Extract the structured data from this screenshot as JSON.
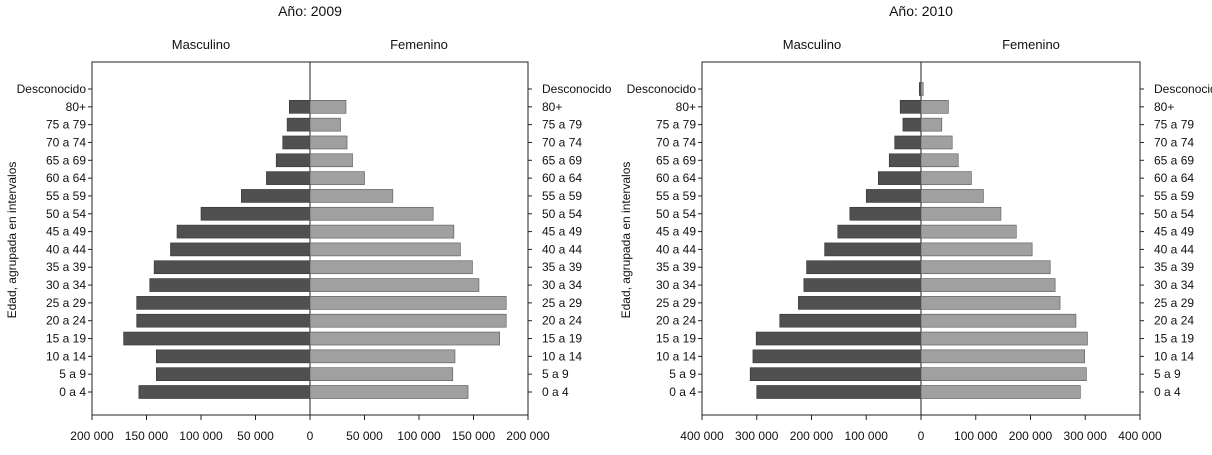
{
  "chart_data": [
    {
      "type": "bar",
      "subtype": "population-pyramid",
      "title": "Año: 2009",
      "ylabel": "Edad, agrupada en intervalos",
      "xlabel": "",
      "categories": [
        "0 a 4",
        "5 a 9",
        "10 a 14",
        "15 a 19",
        "20 a 24",
        "25 a 29",
        "30 a 34",
        "35 a 39",
        "40 a 44",
        "45 a 49",
        "50 a 54",
        "55 a 59",
        "60 a 64",
        "65 a 69",
        "70 a 74",
        "75 a 79",
        "80+",
        "Desconocido"
      ],
      "series": [
        {
          "name": "Masculino",
          "values": [
            157000,
            141000,
            141000,
            171000,
            159000,
            159000,
            147000,
            143000,
            128000,
            122000,
            100000,
            63000,
            40000,
            31000,
            25000,
            21000,
            19000,
            0
          ]
        },
        {
          "name": "Femenino",
          "values": [
            145000,
            131000,
            133000,
            174000,
            180000,
            180000,
            155000,
            149000,
            138000,
            132000,
            113000,
            76000,
            50000,
            39000,
            34000,
            28000,
            33000,
            0
          ]
        }
      ],
      "xlim": [
        -200000,
        200000
      ],
      "x_ticks": [
        -200000,
        -150000,
        -100000,
        -50000,
        0,
        50000,
        100000,
        150000,
        200000
      ],
      "x_tick_labels": [
        "200 000",
        "150 000",
        "100 000",
        "50 000",
        "0",
        "50 000",
        "100 000",
        "150 000",
        "200 000"
      ],
      "colors": {
        "male": "#505050",
        "female": "#a0a0a0"
      },
      "grid": false
    },
    {
      "type": "bar",
      "subtype": "population-pyramid",
      "title": "Año: 2010",
      "ylabel": "Edad, agrupada en intervalos",
      "xlabel": "",
      "categories": [
        "0 a 4",
        "5 a 9",
        "10 a 14",
        "15 a 19",
        "20 a 24",
        "25 a 29",
        "30 a 34",
        "35 a 39",
        "40 a 44",
        "45 a 49",
        "50 a 54",
        "55 a 59",
        "60 a 64",
        "65 a 69",
        "70 a 74",
        "75 a 79",
        "80+",
        "Desconocido"
      ],
      "series": [
        {
          "name": "Masculino",
          "values": [
            300000,
            312000,
            307000,
            301000,
            258000,
            224000,
            214000,
            209000,
            176000,
            152000,
            130000,
            100000,
            78000,
            58000,
            48000,
            33000,
            38000,
            3000
          ]
        },
        {
          "name": "Femenino",
          "values": [
            291000,
            302000,
            299000,
            304000,
            283000,
            254000,
            245000,
            236000,
            203000,
            174000,
            146000,
            114000,
            92000,
            68000,
            57000,
            38000,
            50000,
            4000
          ]
        }
      ],
      "xlim": [
        -400000,
        400000
      ],
      "x_ticks": [
        -400000,
        -300000,
        -200000,
        -100000,
        0,
        100000,
        200000,
        300000,
        400000
      ],
      "x_tick_labels": [
        "400 000",
        "300 000",
        "200 000",
        "100 000",
        "0",
        "100 000",
        "200 000",
        "300 000",
        "400 000"
      ],
      "colors": {
        "male": "#505050",
        "female": "#a0a0a0"
      },
      "grid": false
    }
  ]
}
